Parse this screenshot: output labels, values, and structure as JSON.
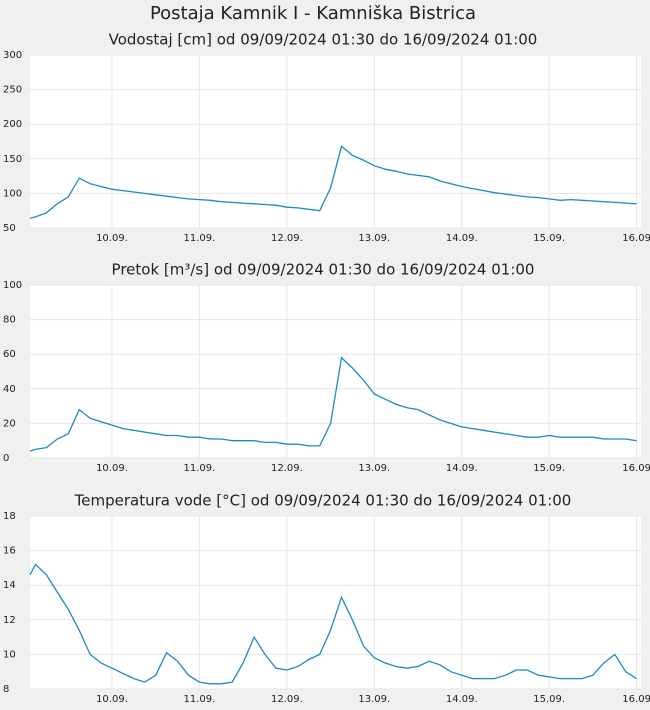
{
  "title": "Postaja Kamnik I - Kamniška Bistrica",
  "chart_data": [
    {
      "type": "line",
      "title": "Vodostaj [cm] od 09/09/2024 01:30 do 16/09/2024 01:00",
      "color": "#1a8ac6",
      "grid": true,
      "x": [
        9.0625,
        9.125,
        9.25,
        9.375,
        9.5,
        9.625,
        9.75,
        9.875,
        10,
        10.125,
        10.25,
        10.375,
        10.5,
        10.625,
        10.75,
        10.875,
        11,
        11.125,
        11.25,
        11.375,
        11.5,
        11.625,
        11.75,
        11.875,
        12,
        12.125,
        12.25,
        12.375,
        12.5,
        12.625,
        12.75,
        12.875,
        13,
        13.125,
        13.25,
        13.375,
        13.5,
        13.625,
        13.75,
        13.875,
        14,
        14.125,
        14.25,
        14.375,
        14.5,
        14.625,
        14.75,
        14.875,
        15,
        15.125,
        15.25,
        15.375,
        15.5,
        15.625,
        15.75,
        15.875,
        16
      ],
      "values": [
        64,
        66,
        72,
        85,
        95,
        122,
        114,
        110,
        106,
        104,
        102,
        100,
        98,
        96,
        94,
        92,
        91,
        90,
        88,
        87,
        86,
        85,
        84,
        83,
        80,
        79,
        77,
        75,
        108,
        168,
        155,
        148,
        140,
        135,
        132,
        128,
        126,
        124,
        118,
        114,
        110,
        107,
        104,
        101,
        99,
        97,
        95,
        94,
        92,
        90,
        91,
        90,
        89,
        88,
        87,
        86,
        85
      ],
      "xlim": [
        9.0625,
        16.05
      ],
      "ylim": [
        50,
        300
      ],
      "yticks": [
        50,
        100,
        150,
        200,
        250,
        300
      ],
      "xticks": [
        {
          "value": 10,
          "label": "10.09."
        },
        {
          "value": 11,
          "label": "11.09."
        },
        {
          "value": 12,
          "label": "12.09."
        },
        {
          "value": 13,
          "label": "13.09."
        },
        {
          "value": 14,
          "label": "14.09."
        },
        {
          "value": 15,
          "label": "15.09."
        },
        {
          "value": 16,
          "label": "16.09"
        }
      ]
    },
    {
      "type": "line",
      "title": "Pretok [m³/s] od 09/09/2024 01:30 do 16/09/2024 01:00",
      "color": "#1a8ac6",
      "grid": true,
      "x": [
        9.0625,
        9.125,
        9.25,
        9.375,
        9.5,
        9.625,
        9.75,
        9.875,
        10,
        10.125,
        10.25,
        10.375,
        10.5,
        10.625,
        10.75,
        10.875,
        11,
        11.125,
        11.25,
        11.375,
        11.5,
        11.625,
        11.75,
        11.875,
        12,
        12.125,
        12.25,
        12.375,
        12.5,
        12.625,
        12.75,
        12.875,
        13,
        13.125,
        13.25,
        13.375,
        13.5,
        13.625,
        13.75,
        13.875,
        14,
        14.125,
        14.25,
        14.375,
        14.5,
        14.625,
        14.75,
        14.875,
        15,
        15.125,
        15.25,
        15.375,
        15.5,
        15.625,
        15.75,
        15.875,
        16
      ],
      "values": [
        4,
        5,
        6,
        11,
        14,
        28,
        23,
        21,
        19,
        17,
        16,
        15,
        14,
        13,
        13,
        12,
        12,
        11,
        11,
        10,
        10,
        10,
        9,
        9,
        8,
        8,
        7,
        7,
        20,
        58,
        52,
        45,
        37,
        34,
        31,
        29,
        28,
        25,
        22,
        20,
        18,
        17,
        16,
        15,
        14,
        13,
        12,
        12,
        13,
        12,
        12,
        12,
        12,
        11,
        11,
        11,
        10
      ],
      "xlim": [
        9.0625,
        16.05
      ],
      "ylim": [
        0,
        100
      ],
      "yticks": [
        0,
        20,
        40,
        60,
        80,
        100
      ],
      "xticks": [
        {
          "value": 10,
          "label": "10.09."
        },
        {
          "value": 11,
          "label": "11.09."
        },
        {
          "value": 12,
          "label": "12.09."
        },
        {
          "value": 13,
          "label": "13.09."
        },
        {
          "value": 14,
          "label": "14.09."
        },
        {
          "value": 15,
          "label": "15.09."
        },
        {
          "value": 16,
          "label": "16.09"
        }
      ]
    },
    {
      "type": "line",
      "title": "Temperatura vode [°C] od 09/09/2024 01:30 do 16/09/2024 01:00",
      "color": "#1a8ac6",
      "grid": true,
      "x": [
        9.0625,
        9.125,
        9.25,
        9.375,
        9.5,
        9.625,
        9.75,
        9.875,
        10,
        10.125,
        10.25,
        10.375,
        10.5,
        10.625,
        10.75,
        10.875,
        11,
        11.125,
        11.25,
        11.375,
        11.5,
        11.625,
        11.75,
        11.875,
        12,
        12.125,
        12.25,
        12.375,
        12.5,
        12.625,
        12.75,
        12.875,
        13,
        13.125,
        13.25,
        13.375,
        13.5,
        13.625,
        13.75,
        13.875,
        14,
        14.125,
        14.25,
        14.375,
        14.5,
        14.625,
        14.75,
        14.875,
        15,
        15.125,
        15.25,
        15.375,
        15.5,
        15.625,
        15.75,
        15.875,
        16
      ],
      "values": [
        14.6,
        15.2,
        14.6,
        13.6,
        12.6,
        11.4,
        10.0,
        9.5,
        9.2,
        8.9,
        8.6,
        8.4,
        8.8,
        10.1,
        9.6,
        8.8,
        8.4,
        8.3,
        8.3,
        8.4,
        9.5,
        11.0,
        10.0,
        9.2,
        9.1,
        9.3,
        9.7,
        10.0,
        11.4,
        13.3,
        12.0,
        10.5,
        9.8,
        9.5,
        9.3,
        9.2,
        9.3,
        9.6,
        9.4,
        9.0,
        8.8,
        8.6,
        8.6,
        8.6,
        8.8,
        9.1,
        9.1,
        8.8,
        8.7,
        8.6,
        8.6,
        8.6,
        8.8,
        9.5,
        10.0,
        9.0,
        8.6
      ],
      "xlim": [
        9.0625,
        16.05
      ],
      "ylim": [
        8,
        18
      ],
      "yticks": [
        8,
        10,
        12,
        14,
        16,
        18
      ],
      "xticks": [
        {
          "value": 10,
          "label": "10.09."
        },
        {
          "value": 11,
          "label": "11.09."
        },
        {
          "value": 12,
          "label": "12.09."
        },
        {
          "value": 13,
          "label": "13.09."
        },
        {
          "value": 14,
          "label": "14.09."
        },
        {
          "value": 15,
          "label": "15.09."
        },
        {
          "value": 16,
          "label": "16.09"
        }
      ]
    }
  ]
}
